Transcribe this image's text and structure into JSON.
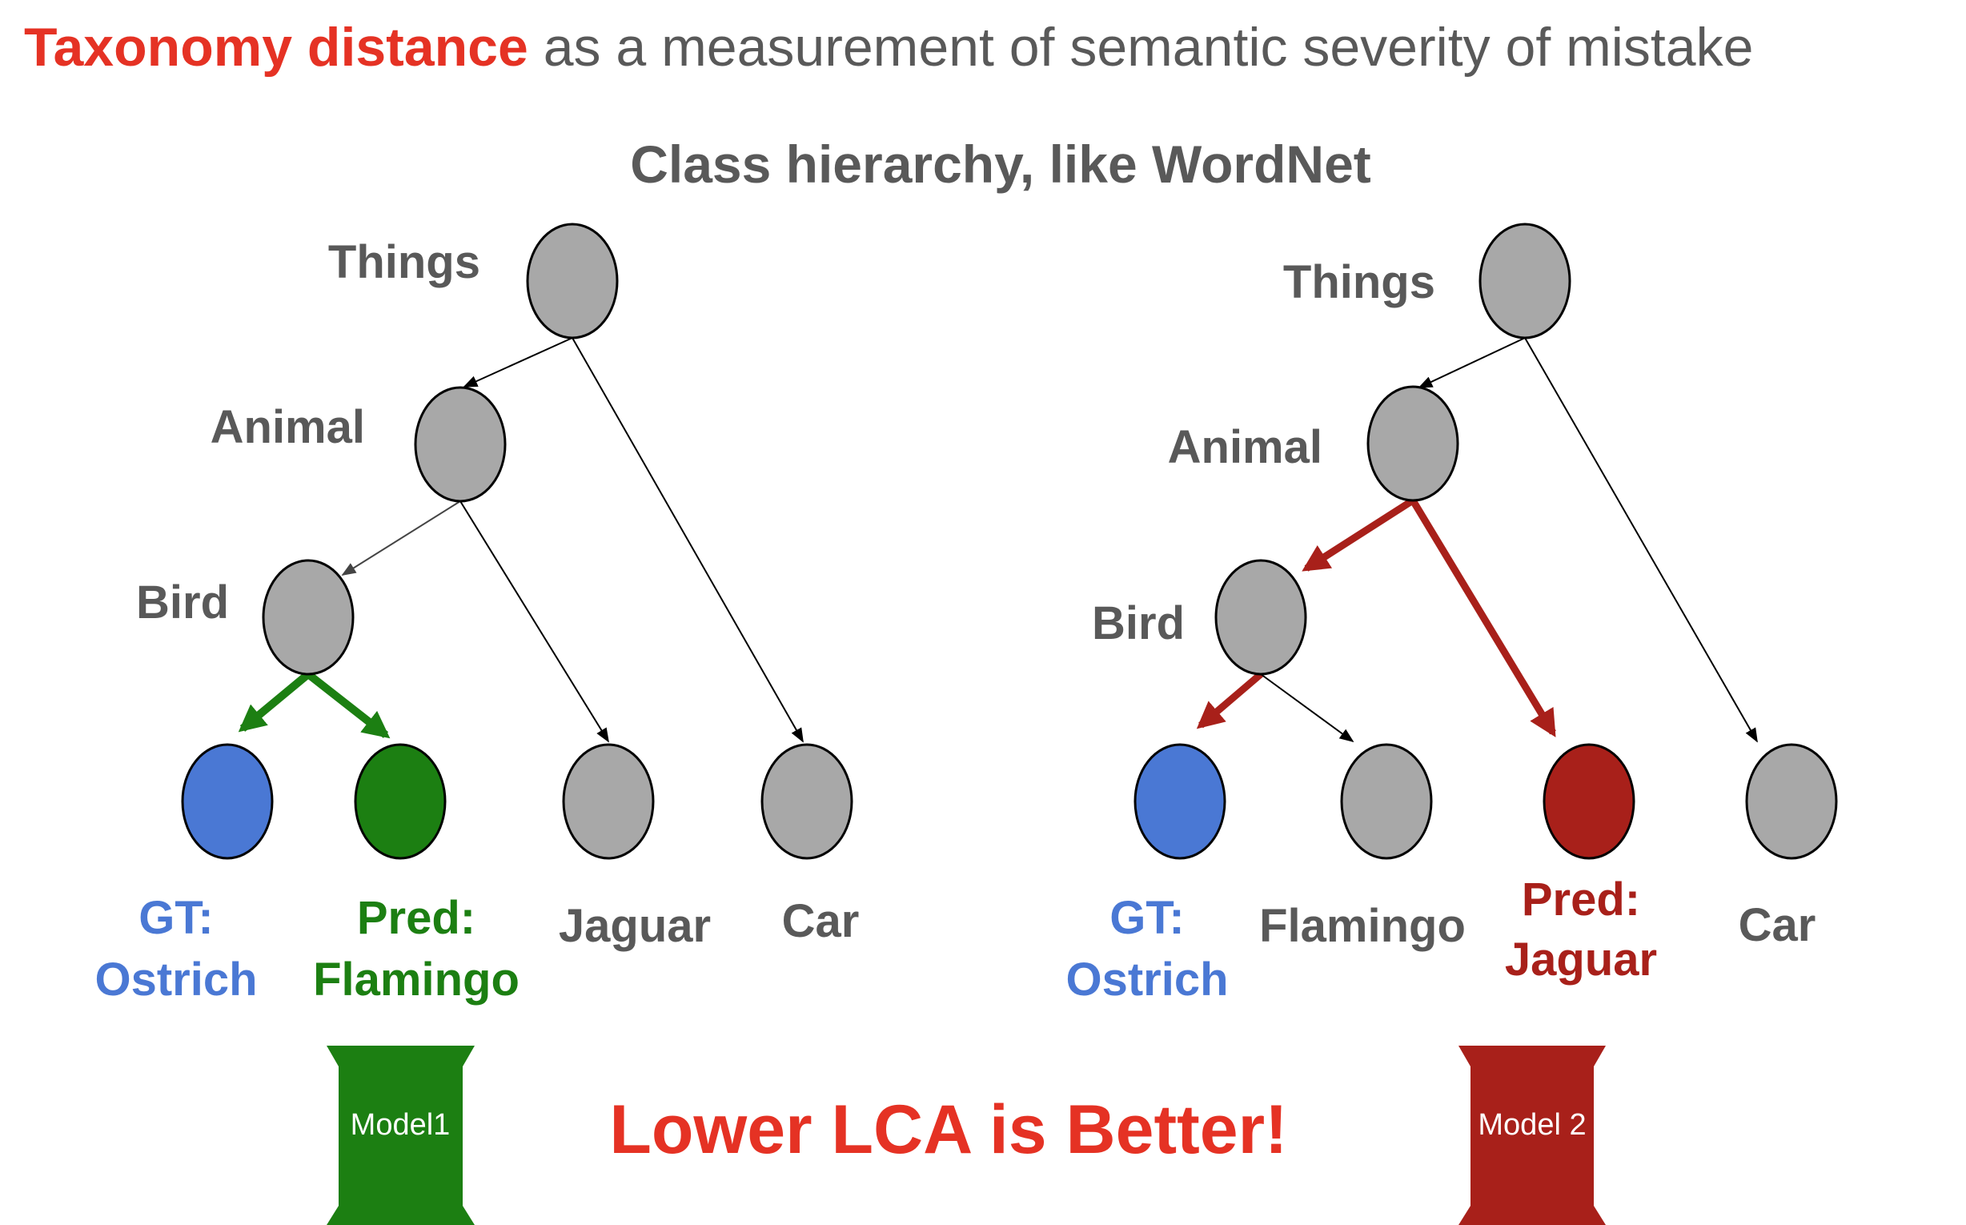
{
  "title": {
    "highlight": "Taxonomy distance",
    "rest": " as a measurement of semantic severity of mistake"
  },
  "subtitle": "Class hierarchy, like WordNet",
  "colors": {
    "title_red": "#e53224",
    "text_gray": "#595959",
    "node_gray": "#a8a8a8",
    "gt_blue": "#4a78d4",
    "pred_green": "#1c7f12",
    "pred_red": "#a8201a"
  },
  "left_tree": {
    "labels": {
      "things": "Things",
      "animal": "Animal",
      "bird": "Bird",
      "gt_line1": "GT:",
      "gt_line2": "Ostrich",
      "pred_line1": "Pred:",
      "pred_line2": "Flamingo",
      "jaguar": "Jaguar",
      "car": "Car"
    },
    "model_label": "Model1"
  },
  "right_tree": {
    "labels": {
      "things": "Things",
      "animal": "Animal",
      "bird": "Bird",
      "gt_line1": "GT:",
      "gt_line2": "Ostrich",
      "flamingo": "Flamingo",
      "pred_line1": "Pred:",
      "pred_line2": "Jaguar",
      "car": "Car"
    },
    "model_label": "Model 2"
  },
  "conclusion": "Lower LCA is Better!"
}
